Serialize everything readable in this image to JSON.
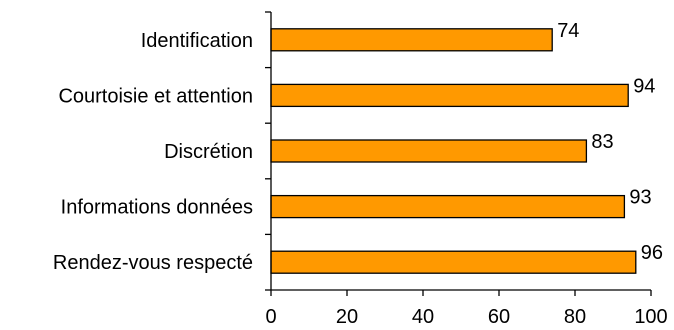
{
  "chart_data": {
    "type": "bar",
    "orientation": "horizontal",
    "categories": [
      "Identification",
      "Courtoisie et attention",
      "Discrétion",
      "Informations données",
      "Rendez-vous respecté"
    ],
    "values": [
      74,
      94,
      83,
      93,
      96
    ],
    "title": "",
    "xlabel": "",
    "ylabel": "",
    "xlim": [
      0,
      100
    ],
    "x_ticks": [
      "0",
      "20",
      "40",
      "60",
      "80",
      "100"
    ],
    "grid": false,
    "legend": "none",
    "bar_color": "#ff9900",
    "bar_border_color": "#000000"
  }
}
